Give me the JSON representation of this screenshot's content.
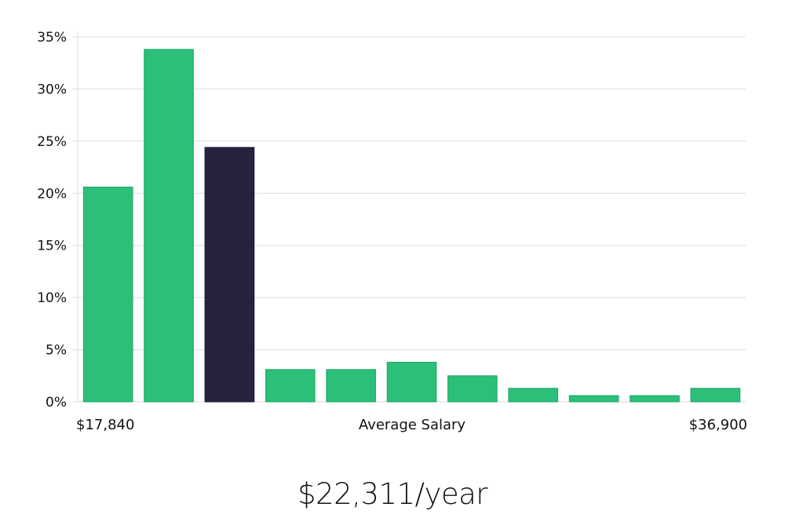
{
  "chart_data": {
    "type": "bar",
    "title": "",
    "xlabel": "Average Salary",
    "x_min_label": "$17,840",
    "x_max_label": "$36,900",
    "ylabel": "",
    "ylim": [
      0,
      35
    ],
    "yticks": [
      "0%",
      "5%",
      "10%",
      "15%",
      "20%",
      "25%",
      "30%",
      "35%"
    ],
    "grid": true,
    "values": [
      20.6,
      33.8,
      24.4,
      3.1,
      3.1,
      3.8,
      2.5,
      1.3,
      0.6,
      0.6,
      1.3
    ],
    "highlight_index": 2,
    "colors": {
      "bar": "#2bbf79",
      "highlight": "#27233f",
      "grid": "#dcdcdc"
    }
  },
  "summary": {
    "value": "$22,311/year"
  }
}
